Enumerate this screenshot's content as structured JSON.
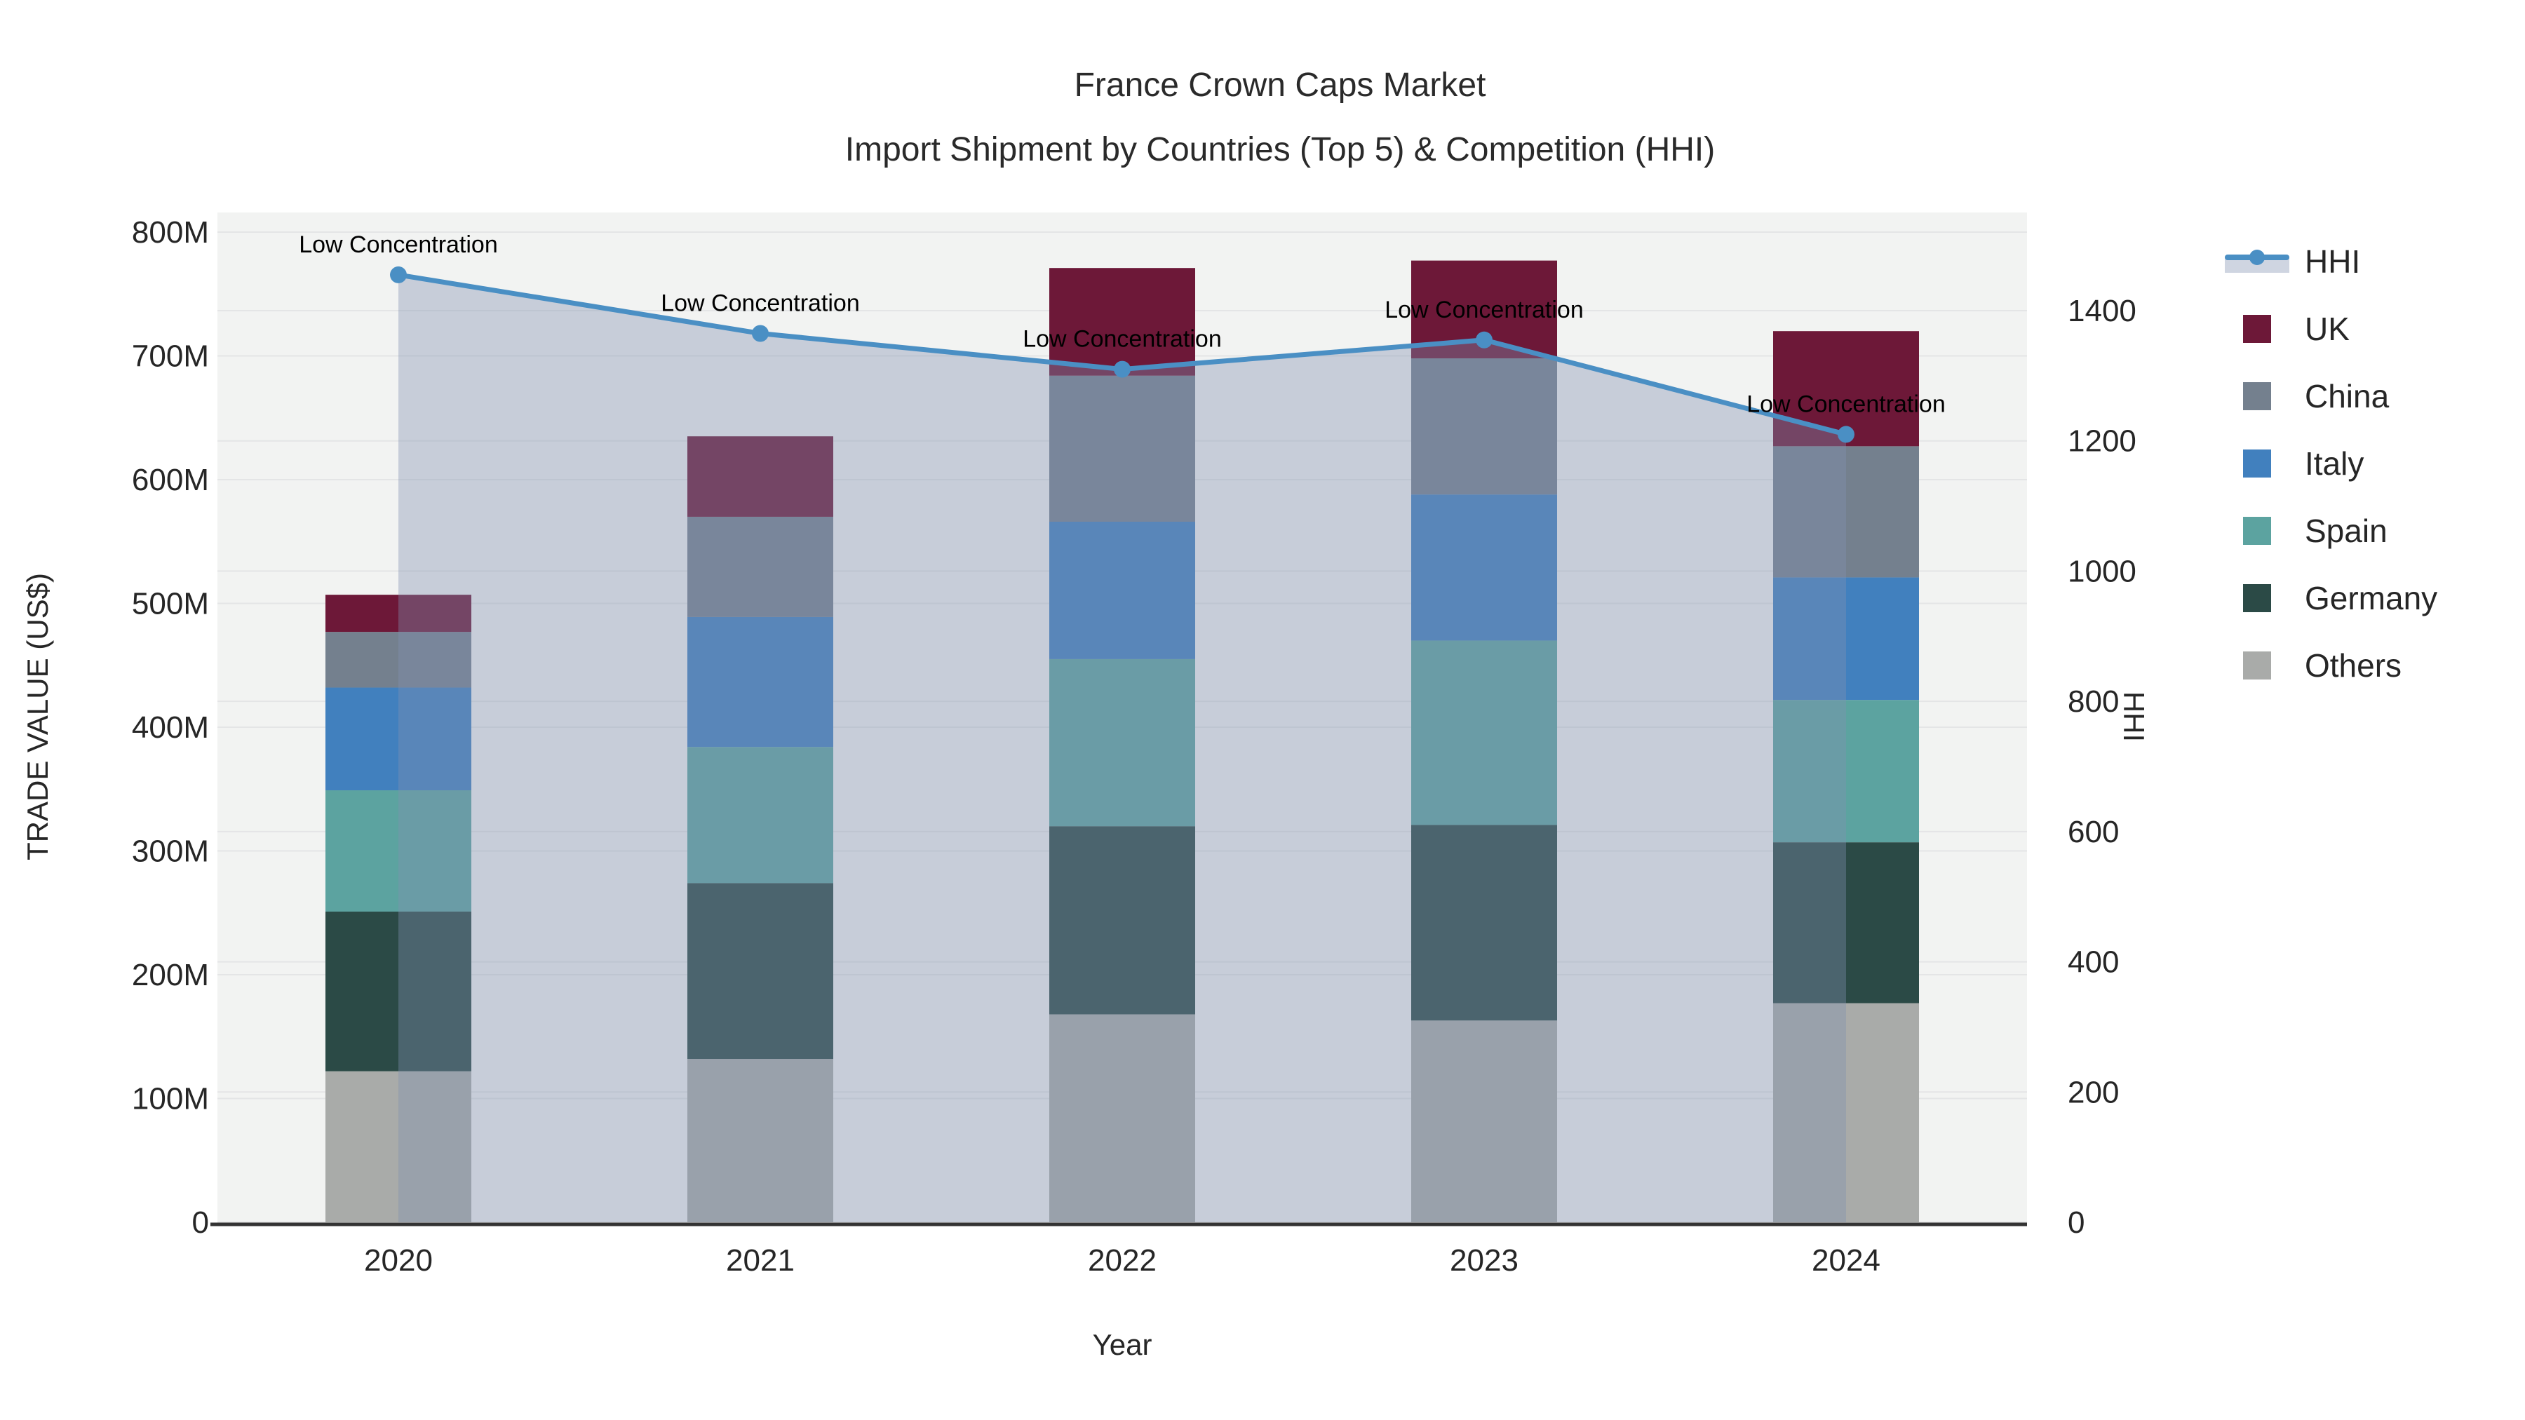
{
  "chart_data": {
    "type": "bar+line",
    "title": "France Crown Caps Market",
    "subtitle": "Import Shipment by Countries (Top 5) & Competition (HHI)",
    "xlabel": "Year",
    "ylabel": "TRADE VALUE (US$)",
    "y2label": "HHI",
    "categories": [
      "2020",
      "2021",
      "2022",
      "2023",
      "2024"
    ],
    "bar_unit": "M",
    "series": [
      {
        "name": "UK",
        "color": "#6D1838",
        "values": [
          30,
          65,
          87,
          79,
          93
        ]
      },
      {
        "name": "China",
        "color": "#74808E",
        "values": [
          45,
          81,
          118,
          110,
          106
        ]
      },
      {
        "name": "Italy",
        "color": "#4180BE",
        "values": [
          83,
          105,
          111,
          118,
          99
        ]
      },
      {
        "name": "Spain",
        "color": "#5CA3A0",
        "values": [
          98,
          110,
          135,
          149,
          115
        ]
      },
      {
        "name": "Germany",
        "color": "#2B4A46",
        "values": [
          129,
          142,
          152,
          158,
          130
        ]
      },
      {
        "name": "Others",
        "color": "#A9ABA9",
        "values": [
          122,
          132,
          168,
          163,
          177
        ]
      }
    ],
    "stack_totals": [
      507,
      635,
      771,
      777,
      720
    ],
    "line_series": {
      "name": "HHI",
      "color": "#4A8FC4",
      "fill_color": "rgba(128,144,176,0.38)",
      "values": [
        1455,
        1365,
        1310,
        1355,
        1210
      ],
      "annotations": [
        "Low Concentration",
        "Low Concentration",
        "Low Concentration",
        "Low Concentration",
        "Low Concentration"
      ]
    },
    "y_axis": {
      "min": 0,
      "max": 816,
      "tick_values": [
        0,
        100,
        200,
        300,
        400,
        500,
        600,
        700,
        800
      ],
      "tick_labels": [
        "0",
        "100M",
        "200M",
        "300M",
        "400M",
        "500M",
        "600M",
        "700M",
        "800M"
      ]
    },
    "y2_axis": {
      "min": 0,
      "max": 1551,
      "tick_values": [
        0,
        200,
        400,
        600,
        800,
        1000,
        1200,
        1400
      ],
      "tick_labels": [
        "0",
        "200",
        "400",
        "600",
        "800",
        "1000",
        "1200",
        "1400"
      ]
    },
    "legend_position": "right",
    "grid": true,
    "plot_bg": "#F2F3F2",
    "grid_color": "#E4E5E6",
    "axis_line_color": "#333333",
    "text_color": "#262626"
  }
}
